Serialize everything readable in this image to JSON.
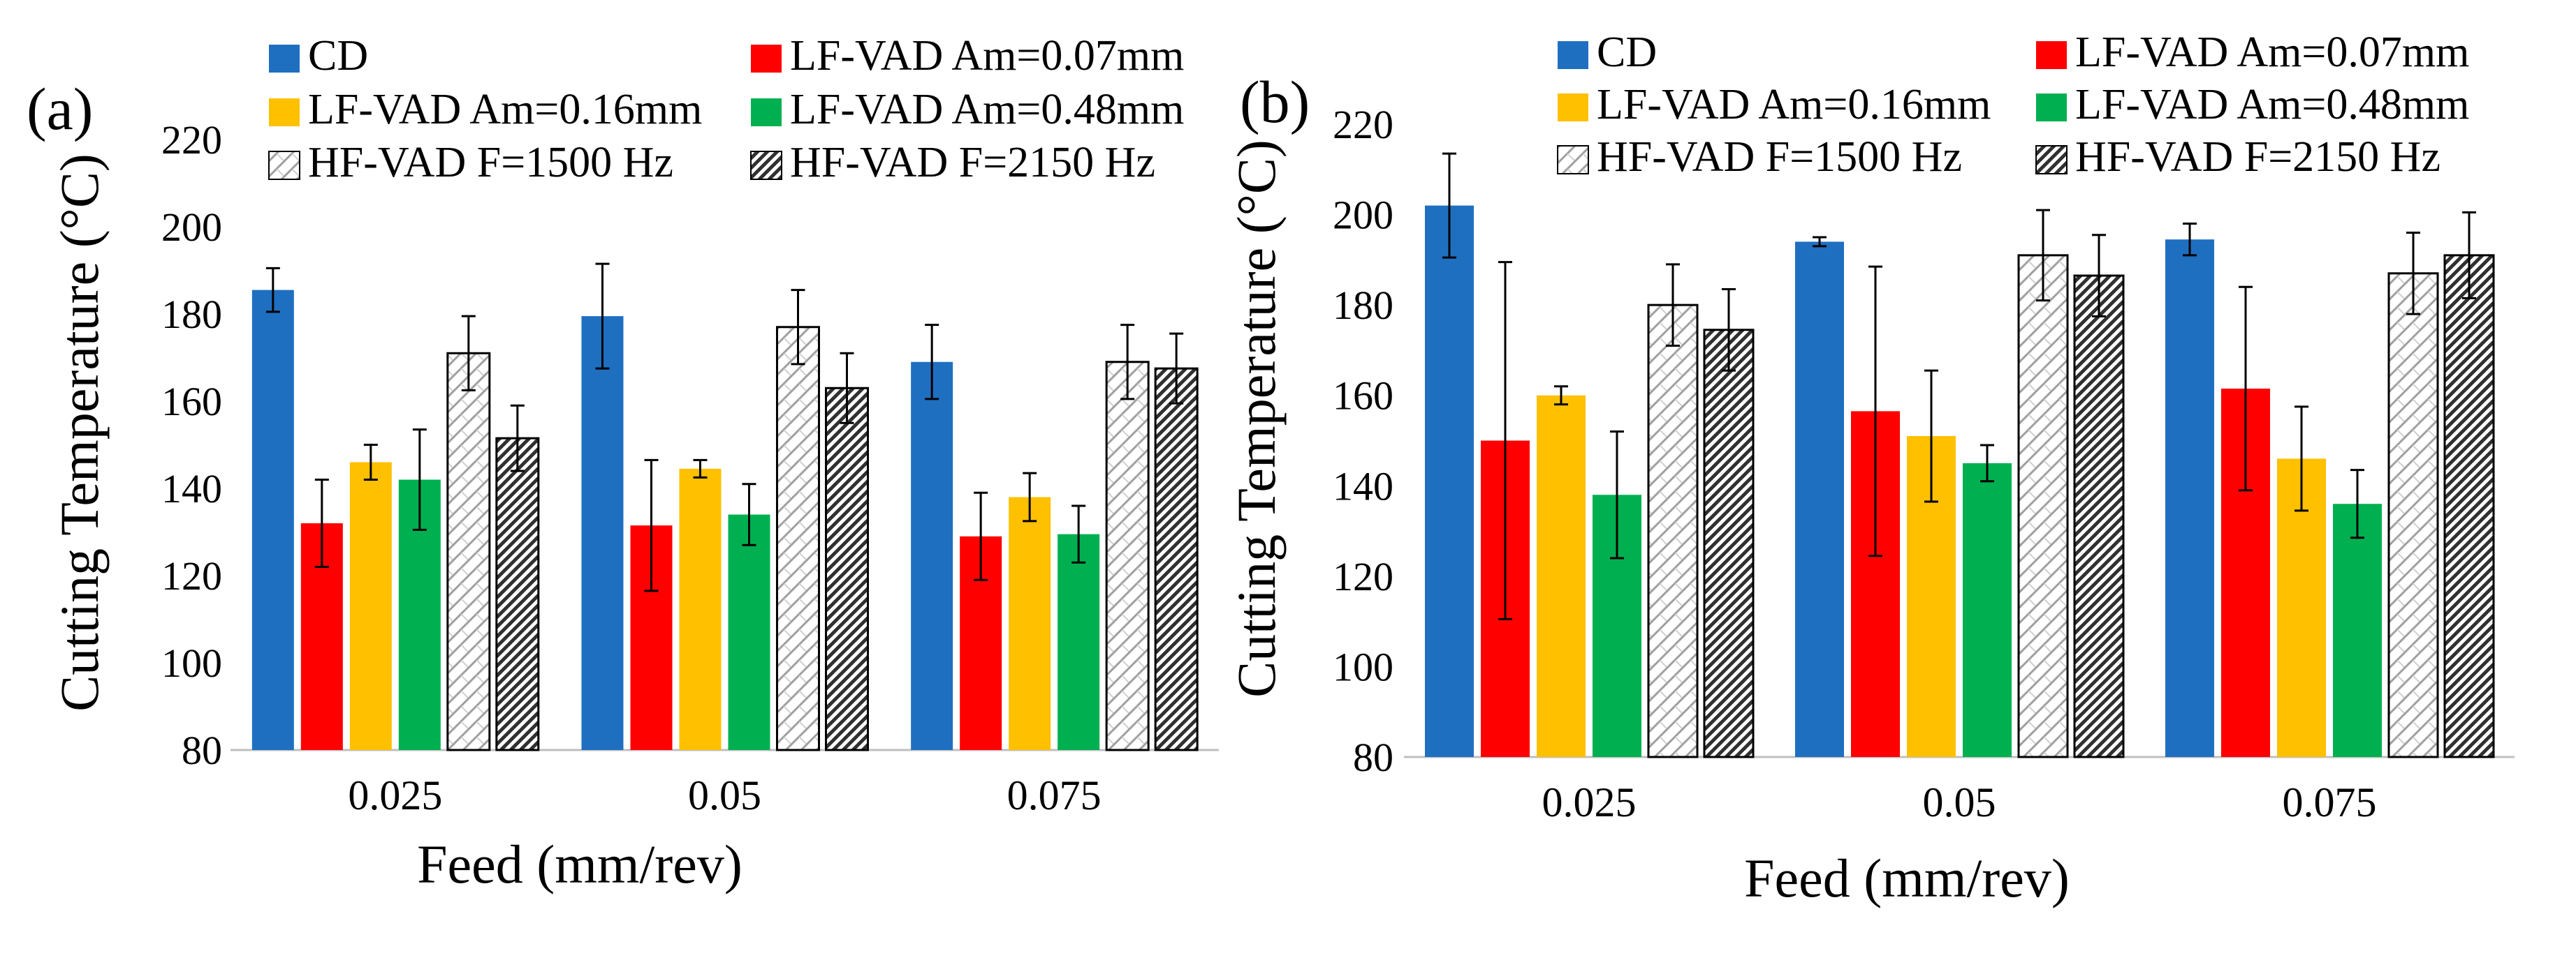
{
  "figure": {
    "panel_labels": [
      "(a)",
      "(b)"
    ]
  },
  "colors": {
    "CD": "#1f6fc1",
    "LF-VAD Am=0.07mm": "#ff0000",
    "LF-VAD Am=0.16mm": "#ffc000",
    "LF-VAD Am=0.48mm": "#00b050",
    "HF-VAD F=1500 Hz": "pattern-light",
    "HF-VAD F=2150 Hz": "pattern-dark",
    "axis": "#bfbfbf"
  },
  "chart_data": [
    {
      "panel": "(a)",
      "type": "bar",
      "xlabel": "Feed (mm/rev)",
      "ylabel": "Cutting Temperature (°C)",
      "ylim": [
        80,
        220
      ],
      "yticks": [
        80,
        100,
        120,
        140,
        160,
        180,
        200,
        220
      ],
      "categories": [
        "0.025",
        "0.05",
        "0.075"
      ],
      "legend_position": "top",
      "series": [
        {
          "name": "CD",
          "values": [
            185.5,
            179.5,
            169
          ],
          "errors": [
            5,
            12,
            8.5
          ]
        },
        {
          "name": "LF-VAD Am=0.07mm",
          "values": [
            132,
            131.5,
            129
          ],
          "errors": [
            10,
            15,
            10
          ]
        },
        {
          "name": "LF-VAD Am=0.16mm",
          "values": [
            146,
            144.5,
            138
          ],
          "errors": [
            4,
            2,
            5.5
          ]
        },
        {
          "name": "LF-VAD Am=0.48mm",
          "values": [
            142,
            134,
            129.5
          ],
          "errors": [
            11.5,
            7,
            6.5
          ]
        },
        {
          "name": "HF-VAD F=1500 Hz",
          "values": [
            171,
            177,
            169
          ],
          "errors": [
            8.5,
            8.5,
            8.5
          ]
        },
        {
          "name": "HF-VAD F=2150 Hz",
          "values": [
            151.5,
            163,
            167.5
          ],
          "errors": [
            7.5,
            8,
            8
          ]
        }
      ]
    },
    {
      "panel": "(b)",
      "type": "bar",
      "xlabel": "Feed (mm/rev)",
      "ylabel": "Cutting Temperature (°C)",
      "ylim": [
        80,
        220
      ],
      "yticks": [
        80,
        100,
        120,
        140,
        160,
        180,
        200,
        220
      ],
      "categories": [
        "0.025",
        "0.05",
        "0.075"
      ],
      "legend_position": "top",
      "series": [
        {
          "name": "CD",
          "values": [
            202,
            194,
            194.5
          ],
          "errors": [
            11.5,
            1,
            3.5
          ]
        },
        {
          "name": "LF-VAD Am=0.07mm",
          "values": [
            150,
            156.5,
            161.5
          ],
          "errors": [
            39.5,
            32,
            22.5
          ]
        },
        {
          "name": "LF-VAD Am=0.16mm",
          "values": [
            160,
            151,
            146
          ],
          "errors": [
            2,
            14.5,
            11.5
          ]
        },
        {
          "name": "LF-VAD Am=0.48mm",
          "values": [
            138,
            145,
            136
          ],
          "errors": [
            14,
            4,
            7.5
          ]
        },
        {
          "name": "HF-VAD F=1500 Hz",
          "values": [
            180,
            191,
            187
          ],
          "errors": [
            9,
            10,
            9
          ]
        },
        {
          "name": "HF-VAD F=2150 Hz",
          "values": [
            174.5,
            186.5,
            191
          ],
          "errors": [
            9,
            9,
            9.5
          ]
        }
      ]
    }
  ]
}
